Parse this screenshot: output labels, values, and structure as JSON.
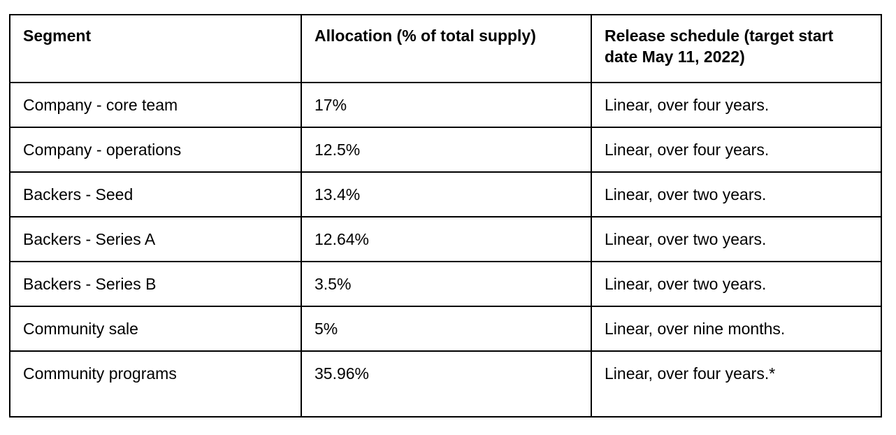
{
  "table": {
    "headers": [
      "Segment",
      "Allocation (% of total supply)",
      "Release schedule (target start date May 11, 2022)"
    ],
    "rows": [
      {
        "segment": "Company - core team",
        "allocation": "17%",
        "release": "Linear, over four years."
      },
      {
        "segment": "Company - operations",
        "allocation": "12.5%",
        "release": "Linear, over four years."
      },
      {
        "segment": "Backers - Seed",
        "allocation": "13.4%",
        "release": "Linear, over two years."
      },
      {
        "segment": "Backers - Series A",
        "allocation": "12.64%",
        "release": "Linear, over two years."
      },
      {
        "segment": "Backers - Series B",
        "allocation": "3.5%",
        "release": "Linear, over two years."
      },
      {
        "segment": "Community sale",
        "allocation": "5%",
        "release": "Linear, over nine months."
      },
      {
        "segment": "Community programs",
        "allocation": "35.96%",
        "release": "Linear, over four years.*"
      }
    ],
    "colors": {
      "border": "#000000",
      "text": "#000000",
      "background": "#ffffff"
    }
  }
}
